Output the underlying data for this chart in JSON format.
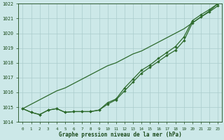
{
  "x": [
    0,
    1,
    2,
    3,
    4,
    5,
    6,
    7,
    8,
    9,
    10,
    11,
    12,
    13,
    14,
    15,
    16,
    17,
    18,
    19,
    20,
    21,
    22,
    23
  ],
  "line_smooth": [
    1014.9,
    1015.2,
    1015.5,
    1015.8,
    1016.1,
    1016.3,
    1016.6,
    1016.9,
    1017.2,
    1017.5,
    1017.8,
    1018.0,
    1018.3,
    1018.6,
    1018.8,
    1019.1,
    1019.4,
    1019.7,
    1020.0,
    1020.3,
    1020.7,
    1021.1,
    1021.5,
    1022.0
  ],
  "line_markers1": [
    1014.9,
    1014.65,
    1014.5,
    1014.8,
    1014.9,
    1014.65,
    1014.7,
    1014.7,
    1014.7,
    1014.8,
    1015.3,
    1015.55,
    1016.3,
    1016.9,
    1017.5,
    1017.85,
    1018.3,
    1018.7,
    1019.1,
    1019.75,
    1020.85,
    1021.25,
    1021.6,
    1022.0
  ],
  "line_markers2": [
    1014.9,
    1014.65,
    1014.5,
    1014.8,
    1014.9,
    1014.65,
    1014.7,
    1014.7,
    1014.7,
    1014.8,
    1015.2,
    1015.5,
    1016.1,
    1016.7,
    1017.3,
    1017.7,
    1018.1,
    1018.5,
    1018.85,
    1019.5,
    1020.7,
    1021.1,
    1021.45,
    1021.85
  ],
  "line_color": "#2d6a2d",
  "bg_color": "#cce8e8",
  "grid_color": "#aacccc",
  "text_color": "#1a4a1a",
  "xlabel": "Graphe pression niveau de la mer (hPa)",
  "ylim": [
    1014,
    1022
  ],
  "xlim": [
    -0.5,
    23.5
  ],
  "yticks": [
    1014,
    1015,
    1016,
    1017,
    1018,
    1019,
    1020,
    1021,
    1022
  ],
  "xticks": [
    0,
    1,
    2,
    3,
    4,
    5,
    6,
    7,
    8,
    9,
    10,
    11,
    12,
    13,
    14,
    15,
    16,
    17,
    18,
    19,
    20,
    21,
    22,
    23
  ]
}
